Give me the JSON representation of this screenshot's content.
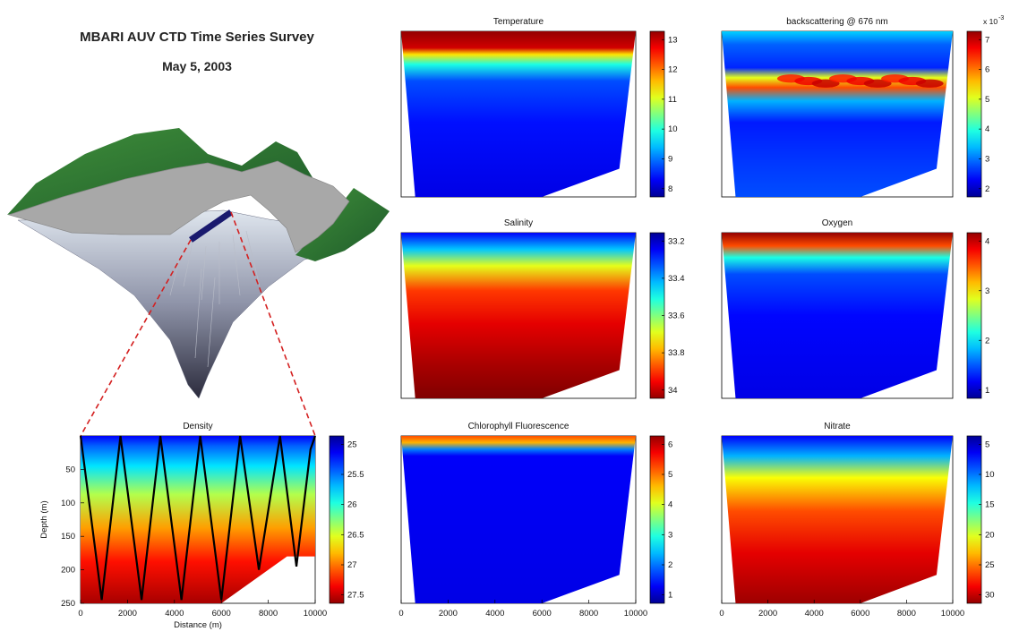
{
  "header": {
    "title": "MBARI AUV CTD Time Series Survey",
    "date": "May 5, 2003"
  },
  "colors": {
    "background": "#ffffff",
    "land_green": "#2f7d3a",
    "flat_gray": "#a8a8a8",
    "transect_line": "#1a1a6e",
    "callout_dash": "#d42020",
    "track_line": "#000000"
  },
  "colormap": "jet",
  "chart_data": [
    {
      "id": "density",
      "type": "heatmap",
      "title": "Density",
      "xlabel": "Distance (m)",
      "ylabel": "Depth (m)",
      "xlim": [
        0,
        10000
      ],
      "ylim": [
        250,
        0
      ],
      "x_ticks": [
        "0",
        "2000",
        "4000",
        "6000",
        "8000",
        "10000"
      ],
      "y_ticks": [
        "50",
        "100",
        "150",
        "200",
        "250"
      ],
      "colorbar_ticks": [
        "25",
        "25.5",
        "26",
        "26.5",
        "27",
        "27.5"
      ],
      "colorbar_reversed": true,
      "track": {
        "x": [
          0,
          900,
          1700,
          2600,
          3400,
          4300,
          5100,
          6000,
          6800,
          7600,
          8500,
          9200,
          9800,
          10000
        ],
        "depth": [
          0,
          245,
          0,
          245,
          0,
          245,
          0,
          245,
          0,
          200,
          0,
          195,
          20,
          0
        ]
      }
    },
    {
      "id": "temperature",
      "type": "heatmap",
      "title": "Temperature",
      "xlim": [
        0,
        10000
      ],
      "ylim": [
        250,
        0
      ],
      "x_ticks": [],
      "colorbar_ticks": [
        "13",
        "12",
        "11",
        "10",
        "9",
        "8"
      ],
      "colorbar_reversed": false
    },
    {
      "id": "backscattering",
      "type": "heatmap",
      "title": "backscattering @ 676 nm",
      "xlim": [
        0,
        10000
      ],
      "ylim": [
        250,
        0
      ],
      "x_ticks": [],
      "colorbar_ticks": [
        "7",
        "6",
        "5",
        "4",
        "3",
        "2"
      ],
      "colorbar_multiplier": "x 10",
      "colorbar_exponent": "-3",
      "colorbar_reversed": false
    },
    {
      "id": "salinity",
      "type": "heatmap",
      "title": "Salinity",
      "xlim": [
        0,
        10000
      ],
      "ylim": [
        250,
        0
      ],
      "x_ticks": [],
      "colorbar_ticks": [
        "33.2",
        "33.4",
        "33.6",
        "33.8",
        "34"
      ],
      "colorbar_reversed": true
    },
    {
      "id": "oxygen",
      "type": "heatmap",
      "title": "Oxygen",
      "xlim": [
        0,
        10000
      ],
      "ylim": [
        250,
        0
      ],
      "x_ticks": [],
      "colorbar_ticks": [
        "4",
        "3",
        "2",
        "1"
      ],
      "colorbar_reversed": false
    },
    {
      "id": "chlorophyll",
      "type": "heatmap",
      "title": "Chlorophyll Fluorescence",
      "xlim": [
        0,
        10000
      ],
      "ylim": [
        250,
        0
      ],
      "x_ticks": [
        "0",
        "2000",
        "4000",
        "6000",
        "8000",
        "10000"
      ],
      "colorbar_ticks": [
        "6",
        "5",
        "4",
        "3",
        "2",
        "1"
      ],
      "colorbar_reversed": false
    },
    {
      "id": "nitrate",
      "type": "heatmap",
      "title": "Nitrate",
      "xlim": [
        0,
        10000
      ],
      "ylim": [
        250,
        0
      ],
      "x_ticks": [
        "0",
        "2000",
        "4000",
        "6000",
        "8000",
        "10000"
      ],
      "colorbar_ticks": [
        "5",
        "10",
        "15",
        "20",
        "25",
        "30"
      ],
      "colorbar_reversed": true
    }
  ]
}
